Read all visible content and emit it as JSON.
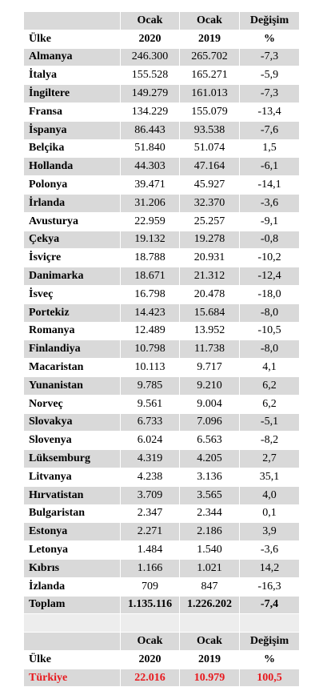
{
  "table": {
    "header": [
      [
        "",
        "Ocak",
        "Ocak",
        "Değişim"
      ],
      [
        "Ülke",
        "2020",
        "2019",
        "%"
      ]
    ],
    "rows": [
      [
        "Almanya",
        "246.300",
        "265.702",
        "-7,3"
      ],
      [
        "İtalya",
        "155.528",
        "165.271",
        "-5,9"
      ],
      [
        "İngiltere",
        "149.279",
        "161.013",
        "-7,3"
      ],
      [
        "Fransa",
        "134.229",
        "155.079",
        "-13,4"
      ],
      [
        "İspanya",
        "86.443",
        "93.538",
        "-7,6"
      ],
      [
        "Belçika",
        "51.840",
        "51.074",
        "1,5"
      ],
      [
        "Hollanda",
        "44.303",
        "47.164",
        "-6,1"
      ],
      [
        "Polonya",
        "39.471",
        "45.927",
        "-14,1"
      ],
      [
        "İrlanda",
        "31.206",
        "32.370",
        "-3,6"
      ],
      [
        "Avusturya",
        "22.959",
        "25.257",
        "-9,1"
      ],
      [
        "Çekya",
        "19.132",
        "19.278",
        "-0,8"
      ],
      [
        "İsviçre",
        "18.788",
        "20.931",
        "-10,2"
      ],
      [
        "Danimarka",
        "18.671",
        "21.312",
        "-12,4"
      ],
      [
        "İsveç",
        "16.798",
        "20.478",
        "-18,0"
      ],
      [
        "Portekiz",
        "14.423",
        "15.684",
        "-8,0"
      ],
      [
        "Romanya",
        "12.489",
        "13.952",
        "-10,5"
      ],
      [
        "Finlandiya",
        "10.798",
        "11.738",
        "-8,0"
      ],
      [
        "Macaristan",
        "10.113",
        "9.717",
        "4,1"
      ],
      [
        "Yunanistan",
        "9.785",
        "9.210",
        "6,2"
      ],
      [
        "Norveç",
        "9.561",
        "9.004",
        "6,2"
      ],
      [
        "Slovakya",
        "6.733",
        "7.096",
        "-5,1"
      ],
      [
        "Slovenya",
        "6.024",
        "6.563",
        "-8,2"
      ],
      [
        "Lüksemburg",
        "4.319",
        "4.205",
        "2,7"
      ],
      [
        "Litvanya",
        "4.238",
        "3.136",
        "35,1"
      ],
      [
        "Hırvatistan",
        "3.709",
        "3.565",
        "4,0"
      ],
      [
        "Bulgaristan",
        "2.347",
        "2.344",
        "0,1"
      ],
      [
        "Estonya",
        "2.271",
        "2.186",
        "3,9"
      ],
      [
        "Letonya",
        "1.484",
        "1.540",
        "-3,6"
      ],
      [
        "Kıbrıs",
        "1.166",
        "1.021",
        "14,2"
      ],
      [
        "İzlanda",
        "709",
        "847",
        "-16,3"
      ]
    ],
    "total": [
      "Toplam",
      "1.135.116",
      "1.226.202",
      "-7,4"
    ],
    "header2": [
      [
        "",
        "Ocak",
        "Ocak",
        "Değişim"
      ],
      [
        "Ülke",
        "2020",
        "2019",
        "%"
      ]
    ],
    "turkey": [
      "Türkiye",
      "22.016",
      "10.979",
      "100,5"
    ]
  }
}
